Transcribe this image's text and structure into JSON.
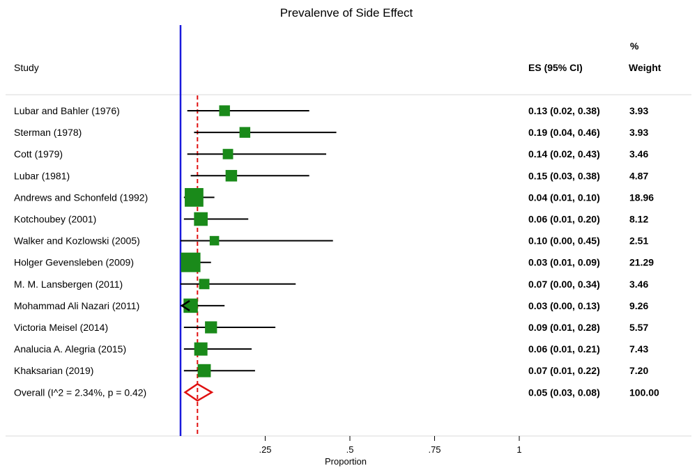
{
  "chart_data": {
    "type": "forest",
    "title": "Prevalenve of Side Effect",
    "xlabel": "Proportion",
    "xlim": [
      0,
      1
    ],
    "x_ticks": [
      {
        "value": 0.25,
        "label": ".25"
      },
      {
        "value": 0.5,
        "label": ".5"
      },
      {
        "value": 0.75,
        "label": ".75"
      },
      {
        "value": 1.0,
        "label": "1"
      }
    ],
    "headers": {
      "study": "Study",
      "es": "ES (95% CI)",
      "weight_top": "%",
      "weight": "Weight"
    },
    "reference_line_x": 0,
    "overall_line_x": 0.05,
    "colors": {
      "marker": "#1a8a1a",
      "axis_line": "#1a1adc",
      "overall": "#e01010",
      "ci": "#000000"
    },
    "studies": [
      {
        "name": "Lubar and Bahler (1976)",
        "es": 0.13,
        "lo": 0.02,
        "hi": 0.38,
        "es_text": "0.13 (0.02, 0.38)",
        "weight": "3.93"
      },
      {
        "name": "Sterman (1978)",
        "es": 0.19,
        "lo": 0.04,
        "hi": 0.46,
        "es_text": "0.19 (0.04, 0.46)",
        "weight": "3.93"
      },
      {
        "name": "Cott (1979)",
        "es": 0.14,
        "lo": 0.02,
        "hi": 0.43,
        "es_text": "0.14 (0.02, 0.43)",
        "weight": "3.46"
      },
      {
        "name": "Lubar (1981)",
        "es": 0.15,
        "lo": 0.03,
        "hi": 0.38,
        "es_text": "0.15 (0.03, 0.38)",
        "weight": "4.87"
      },
      {
        "name": "Andrews and Schonfeld (1992)",
        "es": 0.04,
        "lo": 0.01,
        "hi": 0.1,
        "es_text": "0.04 (0.01, 0.10)",
        "weight": "18.96"
      },
      {
        "name": "Kotchoubey (2001)",
        "es": 0.06,
        "lo": 0.01,
        "hi": 0.2,
        "es_text": "0.06 (0.01, 0.20)",
        "weight": "8.12"
      },
      {
        "name": "Walker and Kozlowski (2005)",
        "es": 0.1,
        "lo": 0.0,
        "hi": 0.45,
        "es_text": "0.10 (0.00, 0.45)",
        "weight": "2.51"
      },
      {
        "name": "Holger Gevensleben  (2009)",
        "es": 0.03,
        "lo": 0.01,
        "hi": 0.09,
        "es_text": "0.03 (0.01, 0.09)",
        "weight": "21.29"
      },
      {
        "name": "M. M. Lansbergen (2011)",
        "es": 0.07,
        "lo": 0.0,
        "hi": 0.34,
        "es_text": "0.07 (0.00, 0.34)",
        "weight": "3.46"
      },
      {
        "name": "Mohammad Ali Nazari (2011)",
        "es": 0.03,
        "lo": 0.0,
        "hi": 0.13,
        "es_text": "0.03 (0.00, 0.13)",
        "weight": "9.26",
        "arrow_left": true
      },
      {
        "name": "Victoria Meisel (2014)",
        "es": 0.09,
        "lo": 0.01,
        "hi": 0.28,
        "es_text": "0.09 (0.01, 0.28)",
        "weight": "5.57"
      },
      {
        "name": "Analucia A. Alegria (2015)",
        "es": 0.06,
        "lo": 0.01,
        "hi": 0.21,
        "es_text": "0.06 (0.01, 0.21)",
        "weight": "7.43"
      },
      {
        "name": "Khaksarian  (2019)",
        "es": 0.07,
        "lo": 0.01,
        "hi": 0.22,
        "es_text": "0.07 (0.01, 0.22)",
        "weight": "7.20"
      }
    ],
    "overall": {
      "name": "Overall  (I^2 = 2.34%, p = 0.42)",
      "es": 0.05,
      "lo": 0.03,
      "hi": 0.08,
      "es_text": "0.05 (0.03, 0.08)",
      "weight": "100.00"
    }
  }
}
